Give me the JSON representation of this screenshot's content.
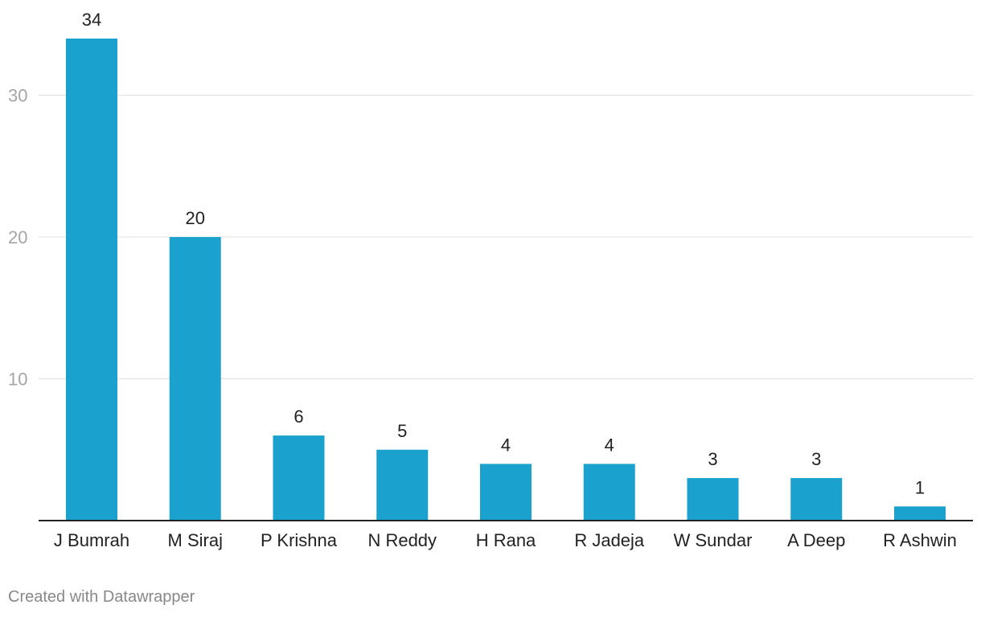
{
  "chart_data": {
    "type": "bar",
    "categories": [
      "J Bumrah",
      "M Siraj",
      "P Krishna",
      "N Reddy",
      "H Rana",
      "R Jadeja",
      "W Sundar",
      "A Deep",
      "R Ashwin"
    ],
    "values": [
      34,
      20,
      6,
      5,
      4,
      4,
      3,
      3,
      1
    ],
    "title": "",
    "xlabel": "",
    "ylabel": "",
    "ylim": [
      0,
      34
    ],
    "yticks": [
      10,
      20,
      30
    ],
    "grid": true,
    "bar_color": "#1aa1cd"
  },
  "footer": {
    "credit": "Created with Datawrapper"
  }
}
